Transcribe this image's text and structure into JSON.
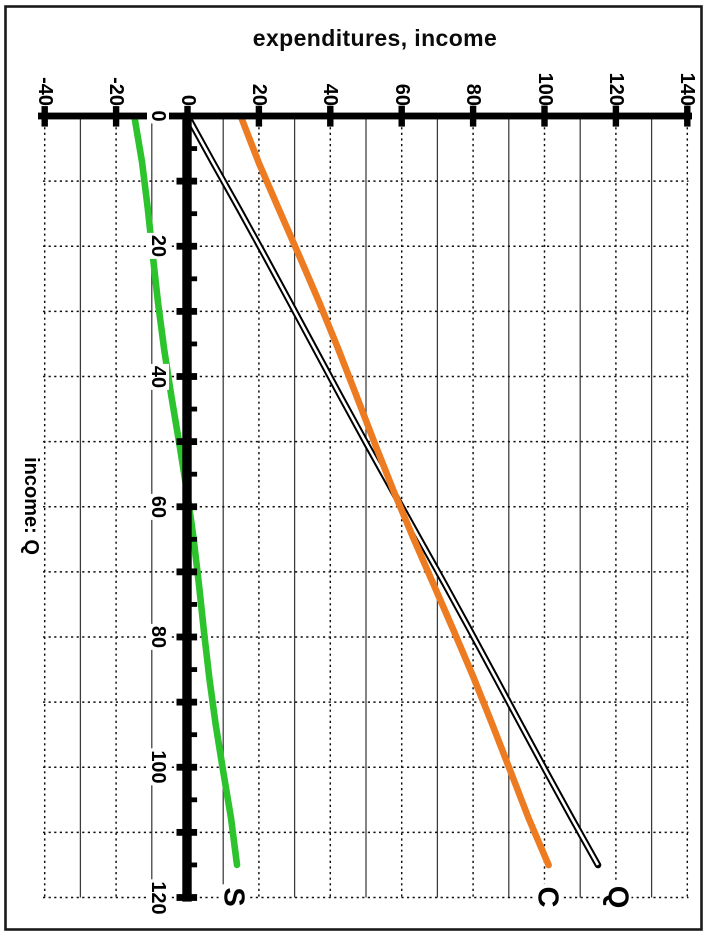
{
  "chart_data": {
    "type": "line",
    "title": "expenditures, income",
    "orientation": "rotated 90deg clockwise: income axis runs top-to-bottom at left, expenditure values increase left-to-right along top; all tick labels rotated 90deg",
    "expenditure_axis": {
      "position": "top",
      "range": [
        -40,
        140
      ],
      "tick_step": 20,
      "gridline_step": 10,
      "tick_labels": [
        "-40",
        "-20",
        "0",
        "20",
        "40",
        "60",
        "80",
        "100",
        "120",
        "140"
      ]
    },
    "income_axis": {
      "position": "left",
      "title": "income: Q",
      "range": [
        0,
        120
      ],
      "label_step": 20,
      "gridline_step": 10,
      "minor_tick_step": 5,
      "tick_labels": [
        "0",
        "20",
        "40",
        "60",
        "80",
        "100",
        "120"
      ]
    },
    "series": [
      {
        "label": "Q",
        "color": "#000000",
        "line_style": "double-outline",
        "income_range": [
          0,
          115
        ],
        "intercept": 0,
        "slope": 1,
        "endpoint_values": [
          0,
          115
        ]
      },
      {
        "label": "C",
        "color": "#ed7b21",
        "line_style": "solid",
        "income_range": [
          0,
          115
        ],
        "intercept": 15,
        "slope": 0.75,
        "endpoint_values": [
          15,
          101
        ]
      },
      {
        "label": "S",
        "color": "#2cc32c",
        "line_style": "solid",
        "income_range": [
          0,
          115
        ],
        "intercept": -15,
        "slope": 0.25,
        "endpoint_values": [
          -15,
          14
        ]
      }
    ]
  },
  "colors": {
    "background": "#ffffff",
    "frame": "#1a1a1a",
    "axis": "#000000",
    "gridline_dashed": "#0f0f0f",
    "gridline_solid": "#3a3a3a",
    "text": "#000000"
  }
}
